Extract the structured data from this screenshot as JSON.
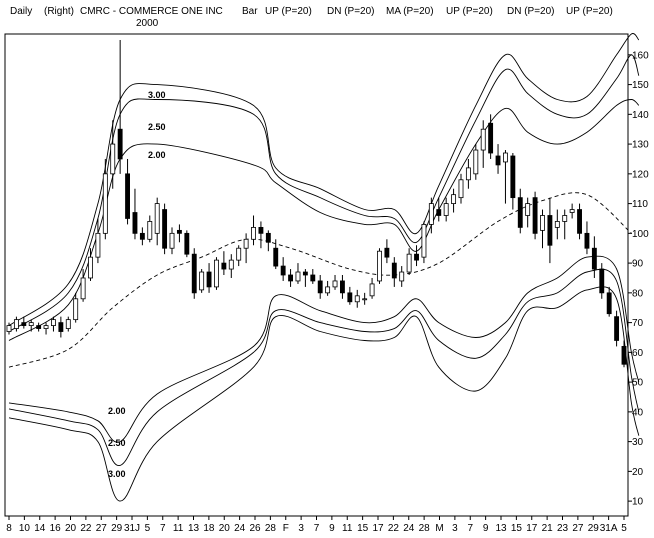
{
  "header": {
    "period": "Daily",
    "scale": "(Right)",
    "title": "CMRC - COMMERCE ONE INC",
    "year": "2000",
    "legend": [
      "Bar",
      "UP (P=20)",
      "DN (P=20)",
      "MA (P=20)",
      "UP (P=20)",
      "DN (P=20)",
      "UP (P=20)"
    ]
  },
  "chart_data": {
    "type": "candlestick",
    "y_axis": {
      "side": "right",
      "min": 10,
      "max": 160,
      "step": 10,
      "range": [
        5,
        167
      ]
    },
    "x_tick_labels": [
      "8",
      "10",
      "14",
      "16",
      "20",
      "22",
      "27",
      "29",
      "31J",
      "5",
      "7",
      "11",
      "13",
      "18",
      "20",
      "24",
      "26",
      "28",
      "F",
      "3",
      "7",
      "9",
      "11",
      "15",
      "17",
      "22",
      "24",
      "28",
      "M",
      "3",
      "7",
      "9",
      "13",
      "15",
      "17",
      "21",
      "23",
      "27",
      "29",
      "31A",
      "5"
    ],
    "band_labels_upper": [
      "3.00",
      "2.50",
      "2.00"
    ],
    "band_labels_lower": [
      "2.00",
      "2.50",
      "3.00"
    ],
    "candles": [
      [
        67,
        70,
        66,
        69
      ],
      [
        68,
        72,
        67,
        71
      ],
      [
        70,
        72,
        68,
        69
      ],
      [
        69,
        71,
        67,
        70
      ],
      [
        69,
        70,
        67,
        68
      ],
      [
        68,
        70,
        66,
        69
      ],
      [
        69,
        72,
        67,
        71
      ],
      [
        70,
        72,
        65,
        67
      ],
      [
        68,
        72,
        67,
        71
      ],
      [
        71,
        80,
        70,
        78
      ],
      [
        78,
        88,
        77,
        85
      ],
      [
        85,
        95,
        84,
        92
      ],
      [
        92,
        105,
        90,
        100
      ],
      [
        100,
        125,
        98,
        120
      ],
      [
        120,
        138,
        115,
        130
      ],
      [
        135,
        165,
        120,
        125
      ],
      [
        120,
        125,
        103,
        105
      ],
      [
        107,
        115,
        98,
        100
      ],
      [
        100,
        102,
        96,
        98
      ],
      [
        98,
        106,
        97,
        104
      ],
      [
        100,
        112,
        96,
        110
      ],
      [
        108,
        110,
        93,
        95
      ],
      [
        95,
        102,
        93,
        100
      ],
      [
        101,
        103,
        97,
        100
      ],
      [
        100,
        101,
        92,
        93
      ],
      [
        93,
        95,
        78,
        80
      ],
      [
        81,
        88,
        80,
        87
      ],
      [
        87,
        90,
        80,
        82
      ],
      [
        82,
        92,
        81,
        91
      ],
      [
        90,
        94,
        86,
        88
      ],
      [
        88,
        93,
        85,
        91
      ],
      [
        91,
        96,
        89,
        95
      ],
      [
        95,
        100,
        90,
        98
      ],
      [
        98,
        106,
        96,
        102
      ],
      [
        102,
        104,
        95,
        100
      ],
      [
        100,
        101,
        94,
        97
      ],
      [
        95,
        98,
        88,
        89
      ],
      [
        89,
        92,
        84,
        86
      ],
      [
        86,
        88,
        82,
        84
      ],
      [
        84,
        90,
        83,
        87
      ],
      [
        87,
        88,
        82,
        86
      ],
      [
        86,
        88,
        83,
        84
      ],
      [
        84,
        86,
        78,
        80
      ],
      [
        80,
        84,
        79,
        82
      ],
      [
        82,
        86,
        81,
        84
      ],
      [
        84,
        86,
        78,
        80
      ],
      [
        80,
        82,
        76,
        77
      ],
      [
        77,
        81,
        75,
        79
      ],
      [
        78,
        80,
        76,
        78
      ],
      [
        79,
        85,
        78,
        83
      ],
      [
        84,
        95,
        83,
        94
      ],
      [
        95,
        98,
        90,
        92
      ],
      [
        90,
        92,
        82,
        85
      ],
      [
        84,
        89,
        82,
        87
      ],
      [
        87,
        95,
        86,
        93
      ],
      [
        93,
        96,
        89,
        91
      ],
      [
        92,
        104,
        90,
        103
      ],
      [
        103,
        112,
        100,
        110
      ],
      [
        108,
        112,
        104,
        106
      ],
      [
        106,
        112,
        104,
        110
      ],
      [
        110,
        115,
        107,
        113
      ],
      [
        112,
        120,
        110,
        118
      ],
      [
        118,
        125,
        115,
        122
      ],
      [
        120,
        130,
        118,
        128
      ],
      [
        128,
        138,
        122,
        135
      ],
      [
        137,
        140,
        125,
        127
      ],
      [
        126,
        130,
        120,
        123
      ],
      [
        124,
        128,
        110,
        127
      ],
      [
        126,
        127,
        108,
        112
      ],
      [
        112,
        115,
        100,
        102
      ],
      [
        106,
        112,
        102,
        110
      ],
      [
        112,
        114,
        98,
        100
      ],
      [
        101,
        108,
        95,
        106
      ],
      [
        106,
        112,
        90,
        96
      ],
      [
        102,
        108,
        98,
        104
      ],
      [
        104,
        108,
        98,
        106
      ],
      [
        107,
        110,
        105,
        108
      ],
      [
        108,
        110,
        98,
        100
      ],
      [
        100,
        104,
        93,
        95
      ],
      [
        95,
        99,
        85,
        88
      ],
      [
        88,
        90,
        78,
        80
      ],
      [
        80,
        82,
        72,
        73
      ],
      [
        72,
        74,
        62,
        64
      ],
      [
        62,
        64,
        55,
        56
      ]
    ],
    "ma_20_anchors": [
      [
        0,
        55
      ],
      [
        8,
        61
      ],
      [
        14,
        75
      ],
      [
        20,
        86
      ],
      [
        26,
        92
      ],
      [
        32,
        98
      ],
      [
        38,
        95
      ],
      [
        46,
        88
      ],
      [
        52,
        86
      ],
      [
        58,
        90
      ],
      [
        66,
        104
      ],
      [
        72,
        111
      ],
      [
        78,
        113
      ],
      [
        84,
        100
      ]
    ],
    "band_2_50_upper": [
      [
        0,
        67
      ],
      [
        8,
        80
      ],
      [
        12,
        105
      ],
      [
        15,
        140
      ],
      [
        20,
        145
      ],
      [
        33,
        140
      ],
      [
        36,
        120
      ],
      [
        42,
        112
      ],
      [
        48,
        106
      ],
      [
        52,
        105
      ],
      [
        55,
        97
      ],
      [
        58,
        112
      ],
      [
        63,
        138
      ],
      [
        67,
        155
      ],
      [
        70,
        147
      ],
      [
        74,
        140
      ],
      [
        78,
        140
      ],
      [
        82,
        152
      ],
      [
        84,
        160
      ],
      [
        85,
        153
      ]
    ],
    "band_3_00_upper": [
      [
        0,
        69
      ],
      [
        8,
        83
      ],
      [
        12,
        110
      ],
      [
        15,
        145
      ],
      [
        20,
        150
      ],
      [
        33,
        143
      ],
      [
        36,
        122
      ],
      [
        42,
        115
      ],
      [
        48,
        108
      ],
      [
        52,
        108
      ],
      [
        55,
        100
      ],
      [
        58,
        116
      ],
      [
        63,
        143
      ],
      [
        67,
        160
      ],
      [
        70,
        152
      ],
      [
        74,
        145
      ],
      [
        78,
        146
      ],
      [
        82,
        160
      ],
      [
        84,
        167
      ],
      [
        85,
        165
      ]
    ],
    "band_2_00_upper": [
      [
        0,
        64
      ],
      [
        8,
        76
      ],
      [
        12,
        100
      ],
      [
        15,
        125
      ],
      [
        20,
        130
      ],
      [
        33,
        123
      ],
      [
        36,
        117
      ],
      [
        42,
        107
      ],
      [
        48,
        103
      ],
      [
        52,
        103
      ],
      [
        55,
        94
      ],
      [
        58,
        108
      ],
      [
        63,
        130
      ],
      [
        67,
        142
      ],
      [
        70,
        134
      ],
      [
        74,
        130
      ],
      [
        78,
        134
      ],
      [
        82,
        143
      ],
      [
        84,
        145
      ],
      [
        85,
        143
      ]
    ],
    "band_2_00_lower": [
      [
        0,
        43
      ],
      [
        8,
        40
      ],
      [
        12,
        37
      ],
      [
        15,
        30
      ],
      [
        20,
        46
      ],
      [
        33,
        62
      ],
      [
        36,
        79
      ],
      [
        42,
        74
      ],
      [
        48,
        70
      ],
      [
        52,
        72
      ],
      [
        55,
        78
      ],
      [
        58,
        70
      ],
      [
        63,
        65
      ],
      [
        67,
        70
      ],
      [
        70,
        80
      ],
      [
        74,
        85
      ],
      [
        78,
        92
      ],
      [
        82,
        88
      ],
      [
        84,
        60
      ],
      [
        85,
        50
      ]
    ],
    "band_2_50_lower": [
      [
        0,
        41
      ],
      [
        8,
        37
      ],
      [
        12,
        34
      ],
      [
        15,
        22
      ],
      [
        20,
        40
      ],
      [
        33,
        60
      ],
      [
        36,
        74
      ],
      [
        42,
        70
      ],
      [
        48,
        67
      ],
      [
        52,
        68
      ],
      [
        55,
        74
      ],
      [
        58,
        64
      ],
      [
        63,
        58
      ],
      [
        67,
        66
      ],
      [
        70,
        77
      ],
      [
        74,
        80
      ],
      [
        78,
        87
      ],
      [
        82,
        84
      ],
      [
        84,
        52
      ],
      [
        85,
        40
      ]
    ],
    "band_3_00_lower": [
      [
        0,
        38
      ],
      [
        8,
        34
      ],
      [
        12,
        30
      ],
      [
        15,
        10
      ],
      [
        20,
        30
      ],
      [
        33,
        55
      ],
      [
        36,
        72
      ],
      [
        42,
        67
      ],
      [
        48,
        64
      ],
      [
        52,
        65
      ],
      [
        55,
        72
      ],
      [
        58,
        55
      ],
      [
        63,
        47
      ],
      [
        67,
        58
      ],
      [
        70,
        74
      ],
      [
        74,
        75
      ],
      [
        78,
        81
      ],
      [
        82,
        78
      ],
      [
        84,
        43
      ],
      [
        85,
        32
      ]
    ]
  }
}
